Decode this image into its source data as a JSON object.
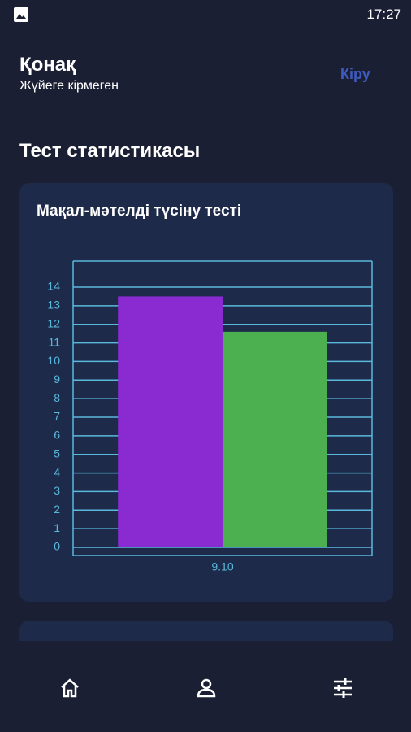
{
  "status_bar": {
    "time": "17:27"
  },
  "header": {
    "title": "Қонақ",
    "subtitle": "Жүйеге кірмеген",
    "login": "Кіру"
  },
  "section_title": "Тест статистикасы",
  "chart_data": {
    "type": "bar",
    "title": "Мақал-мәтелді түсіну тесті",
    "categories": [
      "9.10"
    ],
    "series": [
      {
        "color": "#8a2bd2",
        "values": [
          13.5
        ]
      },
      {
        "color": "#4caf50",
        "values": [
          11.6
        ]
      }
    ],
    "ylim": [
      0,
      15.4
    ],
    "yticks": [
      0,
      1,
      2,
      3,
      4,
      5,
      6,
      7,
      8,
      9,
      10,
      11,
      12,
      13,
      14
    ],
    "grid": true
  }
}
